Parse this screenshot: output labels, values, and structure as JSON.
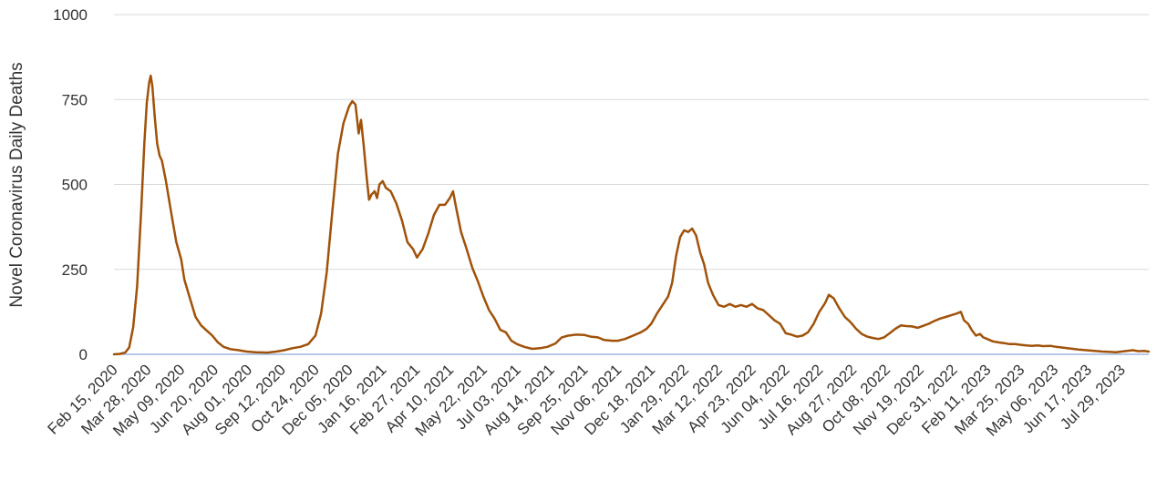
{
  "chart_data": {
    "type": "line",
    "title": "",
    "xlabel": "",
    "ylabel": "Novel Coronavirus Daily Deaths",
    "ylim": [
      0,
      1000
    ],
    "yticks": [
      0,
      250,
      500,
      750,
      1000
    ],
    "grid": "horizontal",
    "legend": "none",
    "line_color": "#a0520a",
    "x_start": "2020-02-15",
    "x_end": "2023-09-01",
    "xtick_labels": [
      "Feb 15, 2020",
      "Mar 28, 2020",
      "May 09, 2020",
      "Jun 20, 2020",
      "Aug 01, 2020",
      "Sep 12, 2020",
      "Oct 24, 2020",
      "Dec 05, 2020",
      "Jan 16, 2021",
      "Feb 27, 2021",
      "Apr 10, 2021",
      "May 22, 2021",
      "Jul 03, 2021",
      "Aug 14, 2021",
      "Sep 25, 2021",
      "Nov 06, 2021",
      "Dec 18, 2021",
      "Jan 29, 2022",
      "Mar 12, 2022",
      "Apr 23, 2022",
      "Jun 04, 2022",
      "Jul 16, 2022",
      "Aug 27, 2022",
      "Oct 08, 2022",
      "Nov 19, 2022",
      "Dec 31, 2022",
      "Feb 11, 2023",
      "Mar 25, 2023",
      "May 06, 2023",
      "Jun 17, 2023",
      "Jul 29, 2023"
    ],
    "series": [
      {
        "name": "",
        "points": [
          [
            "2020-02-15",
            0
          ],
          [
            "2020-02-22",
            1
          ],
          [
            "2020-02-29",
            5
          ],
          [
            "2020-03-05",
            20
          ],
          [
            "2020-03-10",
            80
          ],
          [
            "2020-03-15",
            200
          ],
          [
            "2020-03-20",
            420
          ],
          [
            "2020-03-24",
            620
          ],
          [
            "2020-03-27",
            740
          ],
          [
            "2020-03-30",
            800
          ],
          [
            "2020-04-01",
            820
          ],
          [
            "2020-04-03",
            790
          ],
          [
            "2020-04-06",
            700
          ],
          [
            "2020-04-09",
            620
          ],
          [
            "2020-04-12",
            585
          ],
          [
            "2020-04-15",
            570
          ],
          [
            "2020-04-20",
            510
          ],
          [
            "2020-04-27",
            410
          ],
          [
            "2020-05-03",
            330
          ],
          [
            "2020-05-09",
            280
          ],
          [
            "2020-05-13",
            220
          ],
          [
            "2020-05-20",
            165
          ],
          [
            "2020-05-27",
            110
          ],
          [
            "2020-06-03",
            85
          ],
          [
            "2020-06-10",
            70
          ],
          [
            "2020-06-17",
            55
          ],
          [
            "2020-06-24",
            35
          ],
          [
            "2020-07-01",
            22
          ],
          [
            "2020-07-10",
            15
          ],
          [
            "2020-07-20",
            12
          ],
          [
            "2020-07-30",
            8
          ],
          [
            "2020-08-10",
            6
          ],
          [
            "2020-08-25",
            5
          ],
          [
            "2020-09-05",
            8
          ],
          [
            "2020-09-15",
            12
          ],
          [
            "2020-09-25",
            18
          ],
          [
            "2020-10-05",
            22
          ],
          [
            "2020-10-15",
            30
          ],
          [
            "2020-10-24",
            55
          ],
          [
            "2020-10-31",
            120
          ],
          [
            "2020-11-07",
            240
          ],
          [
            "2020-11-14",
            420
          ],
          [
            "2020-11-21",
            590
          ],
          [
            "2020-11-28",
            680
          ],
          [
            "2020-12-05",
            730
          ],
          [
            "2020-12-09",
            745
          ],
          [
            "2020-12-13",
            735
          ],
          [
            "2020-12-17",
            650
          ],
          [
            "2020-12-20",
            690
          ],
          [
            "2020-12-23",
            620
          ],
          [
            "2020-12-27",
            520
          ],
          [
            "2020-12-30",
            455
          ],
          [
            "2021-01-02",
            470
          ],
          [
            "2021-01-06",
            480
          ],
          [
            "2021-01-09",
            460
          ],
          [
            "2021-01-12",
            500
          ],
          [
            "2021-01-16",
            510
          ],
          [
            "2021-01-20",
            490
          ],
          [
            "2021-01-26",
            480
          ],
          [
            "2021-02-02",
            445
          ],
          [
            "2021-02-09",
            395
          ],
          [
            "2021-02-16",
            330
          ],
          [
            "2021-02-23",
            310
          ],
          [
            "2021-02-28",
            285
          ],
          [
            "2021-03-07",
            310
          ],
          [
            "2021-03-14",
            355
          ],
          [
            "2021-03-21",
            410
          ],
          [
            "2021-03-28",
            440
          ],
          [
            "2021-04-04",
            440
          ],
          [
            "2021-04-10",
            460
          ],
          [
            "2021-04-14",
            480
          ],
          [
            "2021-04-18",
            430
          ],
          [
            "2021-04-24",
            360
          ],
          [
            "2021-05-01",
            310
          ],
          [
            "2021-05-08",
            255
          ],
          [
            "2021-05-15",
            215
          ],
          [
            "2021-05-22",
            170
          ],
          [
            "2021-05-29",
            130
          ],
          [
            "2021-06-05",
            105
          ],
          [
            "2021-06-12",
            72
          ],
          [
            "2021-06-19",
            65
          ],
          [
            "2021-06-26",
            40
          ],
          [
            "2021-07-03",
            30
          ],
          [
            "2021-07-12",
            22
          ],
          [
            "2021-07-22",
            16
          ],
          [
            "2021-08-01",
            18
          ],
          [
            "2021-08-10",
            22
          ],
          [
            "2021-08-20",
            32
          ],
          [
            "2021-08-28",
            50
          ],
          [
            "2021-09-05",
            55
          ],
          [
            "2021-09-15",
            58
          ],
          [
            "2021-09-25",
            57
          ],
          [
            "2021-10-03",
            52
          ],
          [
            "2021-10-12",
            50
          ],
          [
            "2021-10-20",
            42
          ],
          [
            "2021-10-30",
            40
          ],
          [
            "2021-11-06",
            40
          ],
          [
            "2021-11-15",
            45
          ],
          [
            "2021-11-25",
            55
          ],
          [
            "2021-12-05",
            65
          ],
          [
            "2021-12-12",
            75
          ],
          [
            "2021-12-18",
            90
          ],
          [
            "2021-12-25",
            120
          ],
          [
            "2022-01-01",
            145
          ],
          [
            "2022-01-08",
            170
          ],
          [
            "2022-01-13",
            210
          ],
          [
            "2022-01-18",
            290
          ],
          [
            "2022-01-23",
            345
          ],
          [
            "2022-01-28",
            365
          ],
          [
            "2022-02-02",
            360
          ],
          [
            "2022-02-07",
            370
          ],
          [
            "2022-02-12",
            350
          ],
          [
            "2022-02-17",
            300
          ],
          [
            "2022-02-22",
            265
          ],
          [
            "2022-02-27",
            210
          ],
          [
            "2022-03-05",
            175
          ],
          [
            "2022-03-12",
            145
          ],
          [
            "2022-03-19",
            140
          ],
          [
            "2022-03-26",
            148
          ],
          [
            "2022-04-02",
            140
          ],
          [
            "2022-04-09",
            145
          ],
          [
            "2022-04-16",
            140
          ],
          [
            "2022-04-23",
            148
          ],
          [
            "2022-04-30",
            135
          ],
          [
            "2022-05-07",
            130
          ],
          [
            "2022-05-14",
            115
          ],
          [
            "2022-05-21",
            100
          ],
          [
            "2022-05-28",
            90
          ],
          [
            "2022-06-04",
            62
          ],
          [
            "2022-06-11",
            58
          ],
          [
            "2022-06-18",
            52
          ],
          [
            "2022-06-25",
            55
          ],
          [
            "2022-07-02",
            65
          ],
          [
            "2022-07-09",
            90
          ],
          [
            "2022-07-16",
            125
          ],
          [
            "2022-07-23",
            150
          ],
          [
            "2022-07-28",
            175
          ],
          [
            "2022-08-03",
            165
          ],
          [
            "2022-08-10",
            135
          ],
          [
            "2022-08-17",
            110
          ],
          [
            "2022-08-24",
            95
          ],
          [
            "2022-08-31",
            75
          ],
          [
            "2022-09-07",
            60
          ],
          [
            "2022-09-14",
            52
          ],
          [
            "2022-09-21",
            48
          ],
          [
            "2022-09-28",
            45
          ],
          [
            "2022-10-05",
            50
          ],
          [
            "2022-10-12",
            62
          ],
          [
            "2022-10-19",
            75
          ],
          [
            "2022-10-26",
            85
          ],
          [
            "2022-11-02",
            83
          ],
          [
            "2022-11-09",
            82
          ],
          [
            "2022-11-16",
            78
          ],
          [
            "2022-11-23",
            84
          ],
          [
            "2022-11-30",
            90
          ],
          [
            "2022-12-07",
            98
          ],
          [
            "2022-12-14",
            105
          ],
          [
            "2022-12-21",
            110
          ],
          [
            "2022-12-28",
            115
          ],
          [
            "2023-01-04",
            120
          ],
          [
            "2023-01-09",
            125
          ],
          [
            "2023-01-13",
            100
          ],
          [
            "2023-01-18",
            90
          ],
          [
            "2023-01-23",
            70
          ],
          [
            "2023-01-28",
            55
          ],
          [
            "2023-02-02",
            60
          ],
          [
            "2023-02-06",
            50
          ],
          [
            "2023-02-11",
            45
          ],
          [
            "2023-02-18",
            38
          ],
          [
            "2023-02-25",
            35
          ],
          [
            "2023-03-04",
            33
          ],
          [
            "2023-03-11",
            30
          ],
          [
            "2023-03-18",
            30
          ],
          [
            "2023-03-25",
            28
          ],
          [
            "2023-04-01",
            26
          ],
          [
            "2023-04-08",
            25
          ],
          [
            "2023-04-15",
            26
          ],
          [
            "2023-04-22",
            24
          ],
          [
            "2023-05-01",
            25
          ],
          [
            "2023-05-08",
            22
          ],
          [
            "2023-05-15",
            20
          ],
          [
            "2023-05-22",
            18
          ],
          [
            "2023-05-29",
            16
          ],
          [
            "2023-06-05",
            14
          ],
          [
            "2023-06-15",
            12
          ],
          [
            "2023-06-25",
            10
          ],
          [
            "2023-07-05",
            8
          ],
          [
            "2023-07-15",
            7
          ],
          [
            "2023-07-22",
            6
          ],
          [
            "2023-07-29",
            8
          ],
          [
            "2023-08-05",
            10
          ],
          [
            "2023-08-12",
            12
          ],
          [
            "2023-08-19",
            9
          ],
          [
            "2023-08-26",
            10
          ],
          [
            "2023-09-01",
            8
          ]
        ]
      }
    ]
  }
}
